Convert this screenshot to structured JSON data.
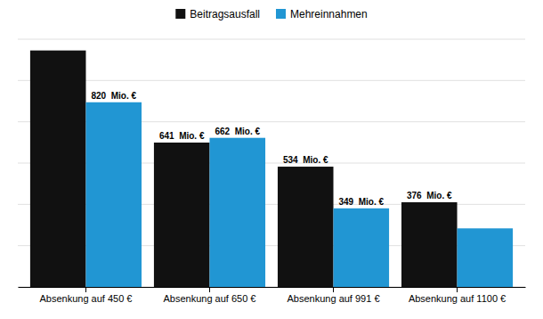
{
  "chart_data": {
    "type": "bar",
    "categories": [
      "Absenkung auf 450 €",
      "Absenkung auf 650 €",
      "Absenkung auf 991 €",
      "Absenkung auf 1100 €"
    ],
    "series": [
      {
        "name": "Beitragsausfall",
        "color": "#111111",
        "values": [
          1050,
          641,
          534,
          376
        ],
        "value_labels": [
          null,
          "641  Mio. €",
          "534  Mio. €",
          "376  Mio. €"
        ]
      },
      {
        "name": "Mehreinnahmen",
        "color": "#2196d3",
        "values": [
          820,
          662,
          349,
          260
        ],
        "value_labels": [
          "820  Mio. €",
          "662  Mio. €",
          "349  Mio. €",
          null
        ]
      }
    ],
    "ylim": [
      0,
      1100
    ],
    "yticks": [
      0,
      183.33333333333334,
      366.6666666666667,
      550,
      733.3333333333334,
      916.6666666666667,
      1100
    ],
    "grid": true,
    "legend": "top",
    "data_labels": true,
    "tick_labels": "x"
  }
}
